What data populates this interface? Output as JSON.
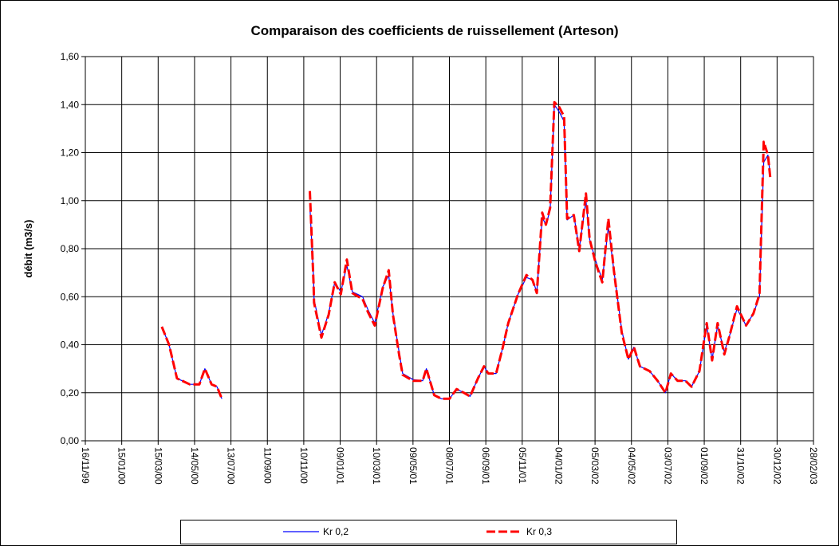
{
  "chart_data": {
    "type": "line",
    "title": "Comparaison des coefficients  de ruissellement (Arteson)",
    "y_label": "débit (m3/s)",
    "x": [
      "2000-03-21",
      "2000-04-02",
      "2000-04-15",
      "2000-05-06",
      "2000-05-22",
      "2000-05-31",
      "2000-06-11",
      "2000-06-20",
      "2000-06-28",
      null,
      "2000-11-20",
      "2000-11-26",
      "2000-11-27",
      "2000-12-09",
      "2000-12-21",
      "2000-12-31",
      "2001-01-10",
      "2001-01-20",
      "2001-01-29",
      "2001-02-15",
      "2001-02-24",
      "2001-03-07",
      "2001-03-20",
      "2001-03-30",
      "2001-04-06",
      "2001-04-16",
      "2001-04-22",
      "2001-05-09",
      "2001-05-25",
      "2001-05-31",
      "2001-06-13",
      "2001-06-25",
      "2001-07-08",
      "2001-07-20",
      "2001-08-01",
      "2001-08-11",
      "2001-08-24",
      "2001-09-03",
      "2001-09-10",
      "2001-09-23",
      "2001-10-04",
      "2001-10-13",
      "2001-10-29",
      "2001-11-12",
      "2001-11-22",
      "2001-11-29",
      "2001-12-08",
      "2001-12-14",
      "2001-12-21",
      "2001-12-28",
      "2002-01-05",
      "2002-01-13",
      "2002-01-18",
      "2002-01-29",
      "2002-02-07",
      "2002-02-18",
      "2002-02-24",
      "2002-03-06",
      "2002-03-17",
      "2002-03-27",
      "2002-04-05",
      "2002-04-18",
      "2002-04-29",
      "2002-05-08",
      "2002-05-18",
      "2002-06-03",
      "2002-06-16",
      "2002-06-29",
      "2002-07-08",
      "2002-07-19",
      "2002-08-01",
      "2002-08-11",
      "2002-08-24",
      "2002-09-05",
      "2002-09-14",
      "2002-09-23",
      "2002-10-04",
      "2002-10-13",
      "2002-10-25",
      "2002-11-09",
      "2002-11-21",
      "2002-12-01",
      "2002-12-08",
      "2002-12-15",
      "2002-12-19"
    ],
    "series": [
      {
        "name": "Kr 0,2",
        "color": "#0000ff",
        "values": [
          0.475,
          0.4,
          0.26,
          0.235,
          0.235,
          0.3,
          0.235,
          0.225,
          0.175,
          null,
          0.98,
          0.68,
          0.59,
          0.44,
          0.53,
          0.66,
          0.62,
          0.73,
          0.62,
          0.6,
          0.545,
          0.49,
          0.64,
          0.69,
          0.53,
          0.37,
          0.28,
          0.255,
          0.25,
          0.3,
          0.19,
          0.175,
          0.175,
          0.215,
          0.2,
          0.185,
          0.26,
          0.31,
          0.28,
          0.28,
          0.39,
          0.49,
          0.61,
          0.68,
          0.67,
          0.62,
          0.93,
          0.9,
          0.96,
          1.4,
          1.37,
          1.33,
          0.92,
          0.94,
          0.8,
          1.0,
          0.84,
          0.75,
          0.67,
          0.89,
          0.71,
          0.46,
          0.34,
          0.39,
          0.31,
          0.29,
          0.25,
          0.2,
          0.28,
          0.25,
          0.25,
          0.225,
          0.29,
          0.48,
          0.34,
          0.48,
          0.37,
          0.44,
          0.55,
          0.48,
          0.53,
          0.6,
          1.16,
          1.19,
          1.1
        ]
      },
      {
        "name": "Kr 0,3",
        "color": "#ff0000",
        "values": [
          0.475,
          0.4,
          0.26,
          0.235,
          0.235,
          0.3,
          0.235,
          0.225,
          0.175,
          null,
          1.04,
          0.66,
          0.575,
          0.43,
          0.525,
          0.66,
          0.61,
          0.755,
          0.615,
          0.59,
          0.535,
          0.48,
          0.635,
          0.71,
          0.525,
          0.36,
          0.275,
          0.25,
          0.25,
          0.3,
          0.19,
          0.175,
          0.175,
          0.215,
          0.2,
          0.185,
          0.26,
          0.31,
          0.28,
          0.28,
          0.39,
          0.49,
          0.61,
          0.69,
          0.67,
          0.615,
          0.95,
          0.9,
          0.97,
          1.41,
          1.39,
          1.35,
          0.925,
          0.94,
          0.79,
          1.03,
          0.84,
          0.74,
          0.66,
          0.925,
          0.71,
          0.45,
          0.34,
          0.39,
          0.31,
          0.29,
          0.25,
          0.2,
          0.28,
          0.25,
          0.25,
          0.225,
          0.29,
          0.49,
          0.335,
          0.49,
          0.36,
          0.44,
          0.56,
          0.48,
          0.53,
          0.61,
          1.245,
          1.19,
          1.09
        ]
      }
    ],
    "xlim": [
      "1999-11-16",
      "2003-02-28"
    ],
    "xticks": [
      {
        "value": "1999-11-16",
        "label": "16/11/99"
      },
      {
        "value": "2000-01-15",
        "label": "15/01/00"
      },
      {
        "value": "2000-03-15",
        "label": "15/03/00"
      },
      {
        "value": "2000-05-14",
        "label": "14/05/00"
      },
      {
        "value": "2000-07-13",
        "label": "13/07/00"
      },
      {
        "value": "2000-09-11",
        "label": "11/09/00"
      },
      {
        "value": "2000-11-10",
        "label": "10/11/00"
      },
      {
        "value": "2001-01-09",
        "label": "09/01/01"
      },
      {
        "value": "2001-03-10",
        "label": "10/03/01"
      },
      {
        "value": "2001-05-09",
        "label": "09/05/01"
      },
      {
        "value": "2001-07-08",
        "label": "08/07/01"
      },
      {
        "value": "2001-09-06",
        "label": "06/09/01"
      },
      {
        "value": "2001-11-05",
        "label": "05/11/01"
      },
      {
        "value": "2002-01-04",
        "label": "04/01/02"
      },
      {
        "value": "2002-03-05",
        "label": "05/03/02"
      },
      {
        "value": "2002-05-04",
        "label": "04/05/02"
      },
      {
        "value": "2002-07-03",
        "label": "03/07/02"
      },
      {
        "value": "2002-09-01",
        "label": "01/09/02"
      },
      {
        "value": "2002-10-31",
        "label": "31/10/02"
      },
      {
        "value": "2002-12-30",
        "label": "30/12/02"
      },
      {
        "value": "2003-02-28",
        "label": "28/02/03"
      }
    ],
    "ylim": [
      0,
      1.6
    ],
    "yticks": [
      {
        "value": 0,
        "label": "0,00"
      },
      {
        "value": 0.2,
        "label": "0,20"
      },
      {
        "value": 0.4,
        "label": "0,40"
      },
      {
        "value": 0.6,
        "label": "0,60"
      },
      {
        "value": 0.8,
        "label": "0,80"
      },
      {
        "value": 1.0,
        "label": "1,00"
      },
      {
        "value": 1.2,
        "label": "1,20"
      },
      {
        "value": 1.4,
        "label": "1,40"
      },
      {
        "value": 1.6,
        "label": "1,60"
      }
    ],
    "grid": true,
    "legend": "bottom"
  }
}
